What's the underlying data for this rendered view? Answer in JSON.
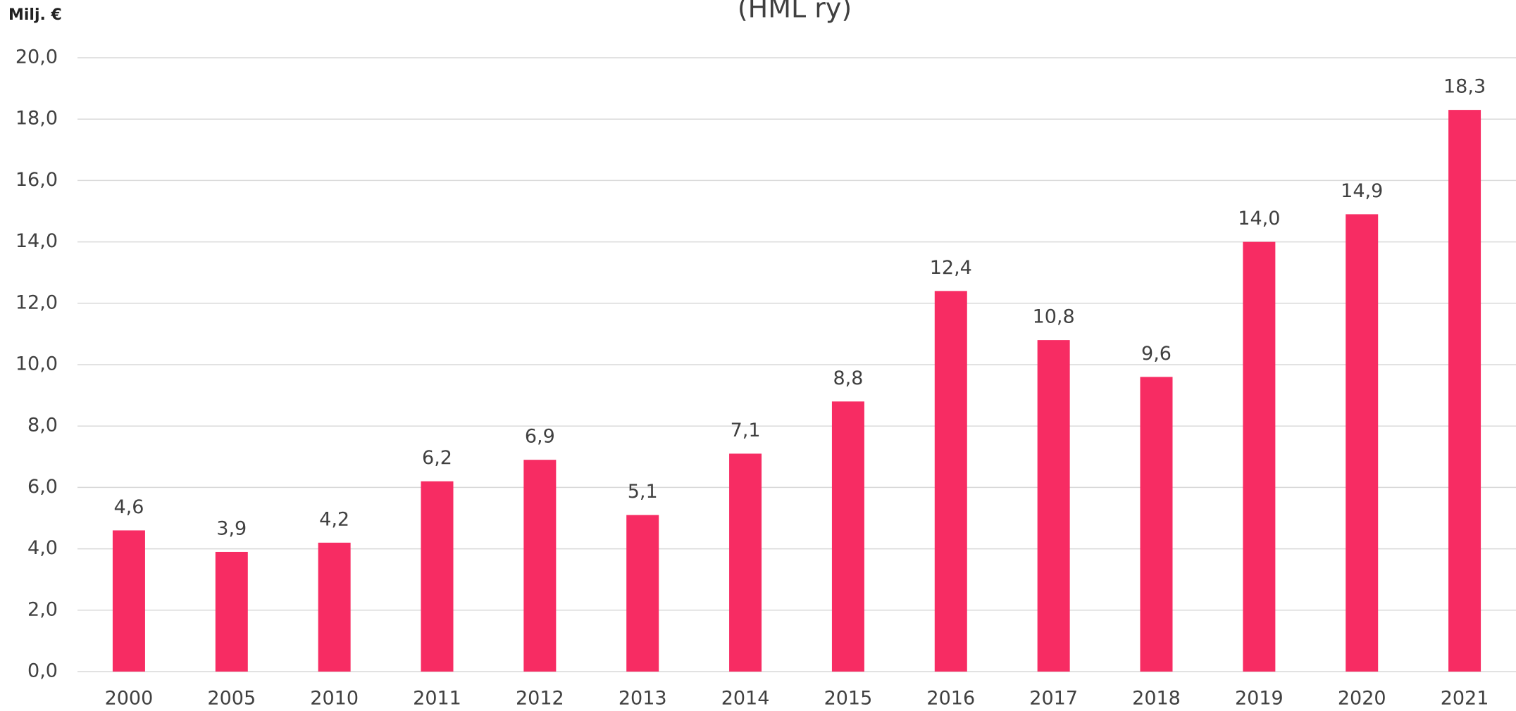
{
  "chart_data": {
    "type": "bar",
    "title": "(HML ry)",
    "y_axis_label": "Milj. €",
    "categories": [
      "2000",
      "2005",
      "2010",
      "2011",
      "2012",
      "2013",
      "2014",
      "2015",
      "2016",
      "2017",
      "2018",
      "2019",
      "2020",
      "2021"
    ],
    "values": [
      4.6,
      3.9,
      4.2,
      6.2,
      6.9,
      5.1,
      7.1,
      8.8,
      12.4,
      10.8,
      9.6,
      14.0,
      14.9,
      18.3
    ],
    "value_labels": [
      "4,6",
      "3,9",
      "4,2",
      "6,2",
      "6,9",
      "5,1",
      "7,1",
      "8,8",
      "12,4",
      "10,8",
      "9,6",
      "14,0",
      "14,9",
      "18,3"
    ],
    "color": "#f72c63",
    "ylim": [
      0,
      20
    ],
    "yticks": [
      {
        "value": 0,
        "label": "0,0"
      },
      {
        "value": 2,
        "label": "2,0"
      },
      {
        "value": 4,
        "label": "4,0"
      },
      {
        "value": 6,
        "label": "6,0"
      },
      {
        "value": 8,
        "label": "8,0"
      },
      {
        "value": 10,
        "label": "10,0"
      },
      {
        "value": 12,
        "label": "12,0"
      },
      {
        "value": 14,
        "label": "14,0"
      },
      {
        "value": 16,
        "label": "16,0"
      },
      {
        "value": 18,
        "label": "18,0"
      },
      {
        "value": 20,
        "label": "20,0"
      }
    ],
    "grid": true
  }
}
